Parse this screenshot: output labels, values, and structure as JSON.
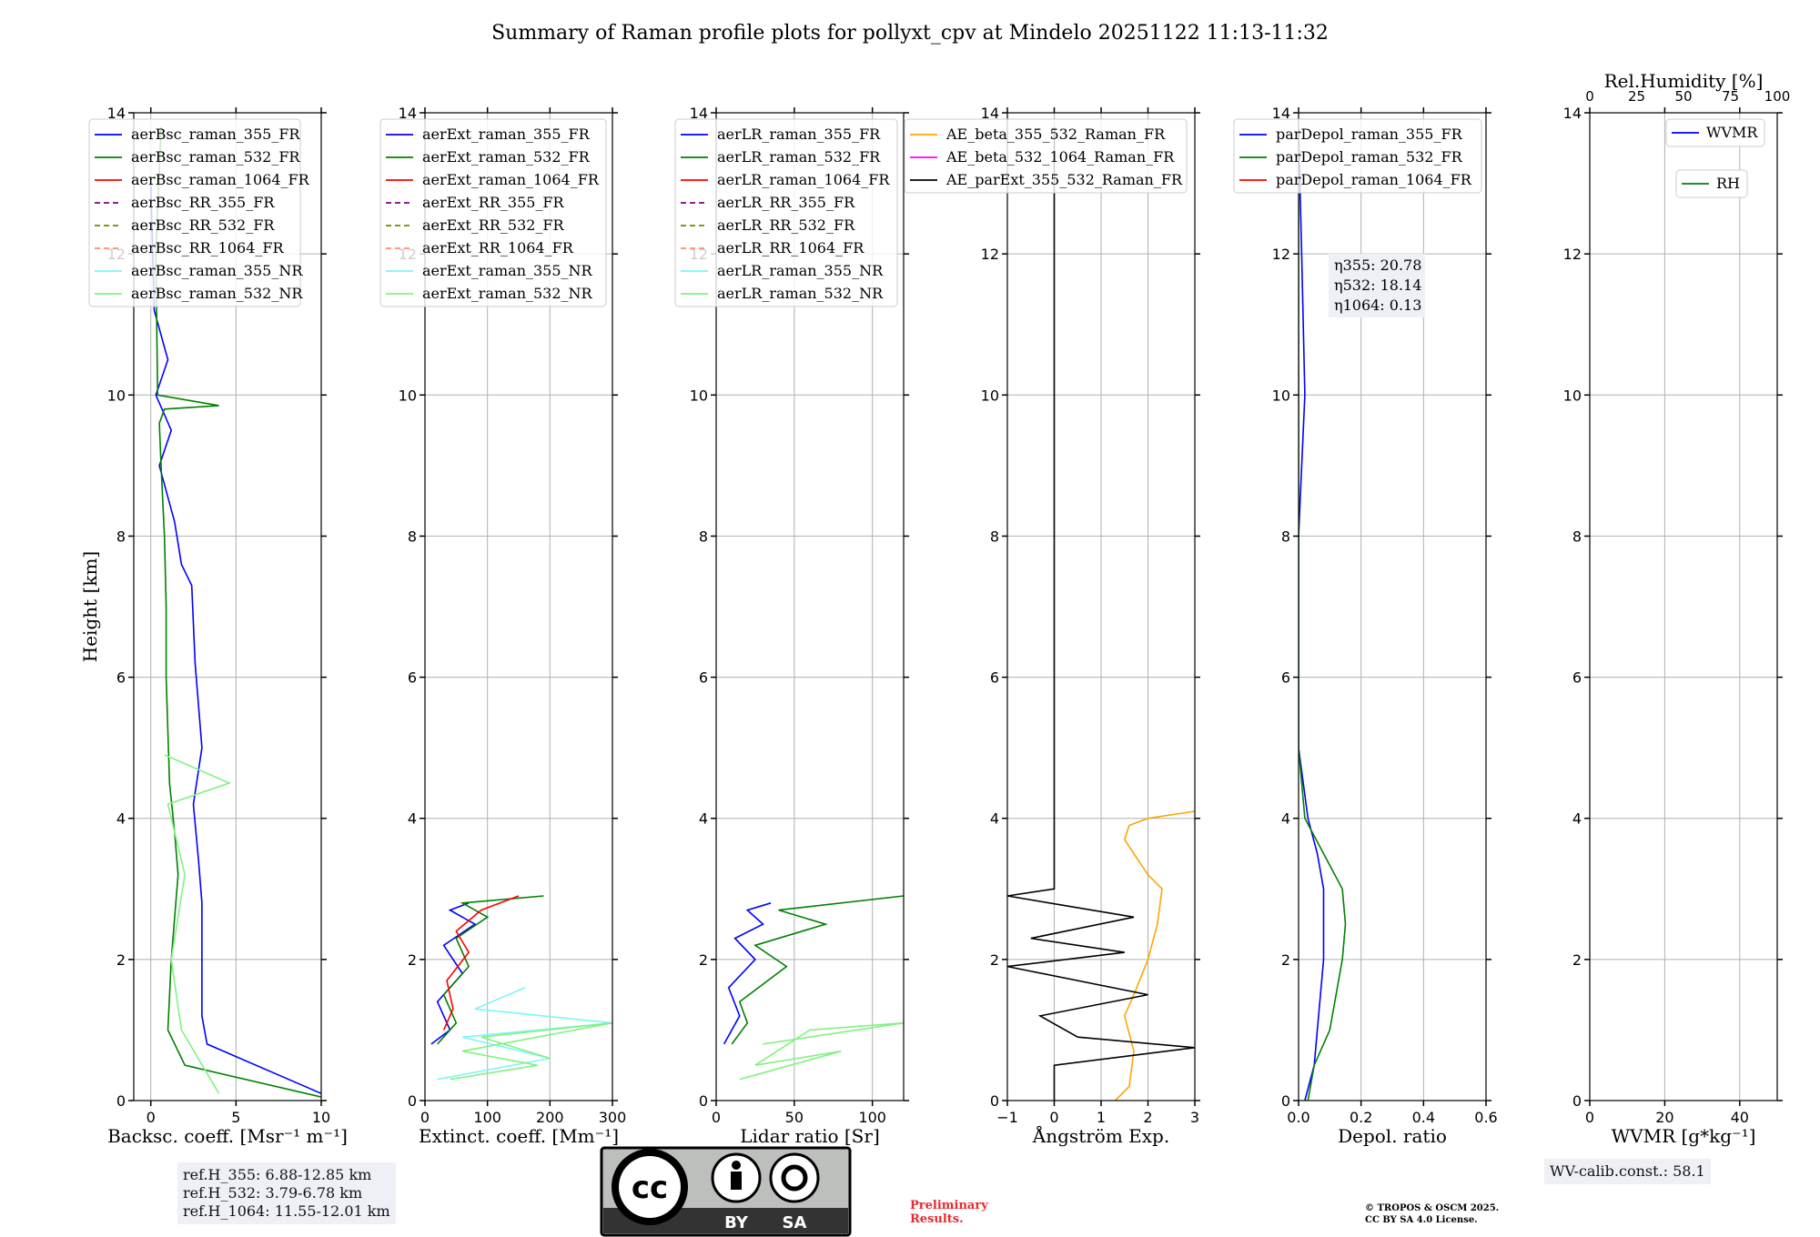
{
  "figure": {
    "title": "Summary of Raman profile plots for pollyxt_cpv at Mindelo 20251122 11:13-11:32"
  },
  "colors": {
    "c355": "#0000ff",
    "c532": "#008000",
    "c1064": "#ff0000",
    "rr355": "#800080",
    "rr532": "#808000",
    "rr1064": "#ff8c69",
    "nr355": "#7ff5f5",
    "nr532": "#82f282",
    "ae1": "#ffa500",
    "ae2": "#ff00ff",
    "ae3": "#000000"
  },
  "chart_data": [
    {
      "type": "line",
      "name": "backscatter",
      "xlabel": "Backsc. coeff. [Msr⁻¹ m⁻¹]",
      "ylabel": "Height [km]",
      "xlim": [
        -1,
        10
      ],
      "ylim": [
        0,
        14
      ],
      "xticks": [
        0,
        5,
        10
      ],
      "xtick_labels": [
        "0",
        "5",
        "10"
      ],
      "yticks": [
        0,
        2,
        4,
        6,
        8,
        10,
        12,
        14
      ],
      "grid": true,
      "legend_position": "upper-left",
      "legend": [
        "aerBsc_raman_355_FR",
        "aerBsc_raman_532_FR",
        "aerBsc_raman_1064_FR",
        "aerBsc_RR_355_FR",
        "aerBsc_RR_532_FR",
        "aerBsc_RR_1064_FR",
        "aerBsc_raman_355_NR",
        "aerBsc_raman_532_NR"
      ],
      "series": [
        {
          "name": "aerBsc_raman_355_FR",
          "x": [
            10,
            3.3,
            3.0,
            3.0,
            2.8,
            2.5,
            3.0,
            2.6,
            2.4,
            1.8,
            1.4,
            0.5,
            1.2,
            0.3,
            1.0,
            0.2,
            0.0
          ],
          "y": [
            0.1,
            0.8,
            1.2,
            2.8,
            3.4,
            4.2,
            5.0,
            6.2,
            7.3,
            7.6,
            8.2,
            9.0,
            9.5,
            10.0,
            10.5,
            11.2,
            13.0
          ]
        },
        {
          "name": "aerBsc_raman_532_FR",
          "x": [
            10,
            2.0,
            1.0,
            1.2,
            1.6,
            1.4,
            1.1,
            0.9,
            0.9,
            0.8,
            0.6,
            0.5,
            0.8,
            4.0,
            0.4,
            0.3,
            0.6
          ],
          "y": [
            0.05,
            0.5,
            1.0,
            2.0,
            3.2,
            3.8,
            4.5,
            6.0,
            7.0,
            8.0,
            9.0,
            9.6,
            9.8,
            9.85,
            10.0,
            12.0,
            13.8
          ]
        },
        {
          "name": "aerBsc_raman_532_NR",
          "x": [
            4,
            1.8,
            1.2,
            1.8,
            2.0,
            1.0,
            4.6,
            0.8
          ],
          "y": [
            0.1,
            1.0,
            2.0,
            2.9,
            3.2,
            4.2,
            4.5,
            4.9
          ]
        }
      ]
    },
    {
      "type": "line",
      "name": "extinction",
      "xlabel": "Extinct. coeff. [Mm⁻¹]",
      "xlim": [
        0,
        300
      ],
      "ylim": [
        0,
        14
      ],
      "xticks": [
        0,
        100,
        200,
        300
      ],
      "xtick_labels": [
        "0",
        "100",
        "200",
        "300"
      ],
      "yticks": [
        0,
        2,
        4,
        6,
        8,
        10,
        12,
        14
      ],
      "grid": true,
      "legend_position": "upper-left",
      "legend": [
        "aerExt_raman_355_FR",
        "aerExt_raman_532_FR",
        "aerExt_raman_1064_FR",
        "aerExt_RR_355_FR",
        "aerExt_RR_532_FR",
        "aerExt_RR_1064_FR",
        "aerExt_raman_355_NR",
        "aerExt_raman_532_NR"
      ],
      "series": [
        {
          "name": "aerExt_raman_355_FR",
          "x": [
            10,
            40,
            20,
            60,
            30,
            80,
            40,
            70
          ],
          "y": [
            0.8,
            1.0,
            1.4,
            1.8,
            2.2,
            2.5,
            2.7,
            2.8
          ]
        },
        {
          "name": "aerExt_raman_532_FR",
          "x": [
            20,
            50,
            30,
            70,
            50,
            100,
            60,
            190
          ],
          "y": [
            0.8,
            1.1,
            1.5,
            1.9,
            2.3,
            2.6,
            2.8,
            2.9
          ]
        },
        {
          "name": "aerExt_raman_1064_FR",
          "x": [
            30,
            45,
            35,
            70,
            50,
            90,
            150
          ],
          "y": [
            1.0,
            1.3,
            1.7,
            2.1,
            2.4,
            2.7,
            2.9
          ]
        },
        {
          "name": "aerExt_raman_355_NR",
          "x": [
            20,
            200,
            60,
            300,
            80,
            160
          ],
          "y": [
            0.3,
            0.6,
            0.9,
            1.1,
            1.3,
            1.6
          ]
        },
        {
          "name": "aerExt_raman_532_NR",
          "x": [
            40,
            180,
            60,
            300,
            90,
            200
          ],
          "y": [
            0.3,
            0.5,
            0.7,
            1.1,
            0.9,
            0.6
          ]
        }
      ]
    },
    {
      "type": "line",
      "name": "lidar-ratio",
      "xlabel": "Lidar ratio [Sr]",
      "xlim": [
        0,
        120
      ],
      "ylim": [
        0,
        14
      ],
      "xticks": [
        0,
        50,
        100
      ],
      "xtick_labels": [
        "0",
        "50",
        "100"
      ],
      "yticks": [
        0,
        2,
        4,
        6,
        8,
        10,
        12,
        14
      ],
      "grid": true,
      "legend_position": "upper-left",
      "legend": [
        "aerLR_raman_355_FR",
        "aerLR_raman_532_FR",
        "aerLR_raman_1064_FR",
        "aerLR_RR_355_FR",
        "aerLR_RR_532_FR",
        "aerLR_RR_1064_FR",
        "aerLR_raman_355_NR",
        "aerLR_raman_532_NR"
      ],
      "series": [
        {
          "name": "aerLR_raman_355_FR",
          "x": [
            5,
            15,
            8,
            25,
            12,
            30,
            20,
            35
          ],
          "y": [
            0.8,
            1.2,
            1.6,
            2.0,
            2.3,
            2.5,
            2.7,
            2.8
          ]
        },
        {
          "name": "aerLR_raman_532_FR",
          "x": [
            10,
            20,
            15,
            45,
            25,
            70,
            40,
            120
          ],
          "y": [
            0.8,
            1.1,
            1.4,
            1.9,
            2.2,
            2.5,
            2.7,
            2.9
          ]
        },
        {
          "name": "aerLR_raman_532_NR",
          "x": [
            15,
            80,
            25,
            60,
            120,
            30
          ],
          "y": [
            0.3,
            0.7,
            0.5,
            1.0,
            1.1,
            0.8
          ]
        }
      ]
    },
    {
      "type": "line",
      "name": "angstrom",
      "xlabel": "Ångström Exp.",
      "xlim": [
        -1,
        3
      ],
      "ylim": [
        0,
        14
      ],
      "xticks": [
        -1,
        0,
        1,
        2,
        3
      ],
      "xtick_labels": [
        "−1",
        "0",
        "1",
        "2",
        "3"
      ],
      "yticks": [
        0,
        2,
        4,
        6,
        8,
        10,
        12,
        14
      ],
      "grid": true,
      "legend_position": "upper-left",
      "legend": [
        "AE_beta_355_532_Raman_FR",
        "AE_beta_532_1064_Raman_FR",
        "AE_parExt_355_532_Raman_FR"
      ],
      "series": [
        {
          "name": "AE_beta_355_532_Raman_FR",
          "x": [
            1.3,
            1.6,
            1.7,
            1.5,
            1.7,
            2.0,
            2.2,
            2.3,
            2.0,
            1.7,
            1.5,
            1.6,
            2.0,
            3.0
          ],
          "y": [
            0.0,
            0.2,
            0.7,
            1.2,
            1.5,
            2.0,
            2.5,
            3.0,
            3.2,
            3.5,
            3.7,
            3.9,
            4.0,
            4.1
          ]
        },
        {
          "name": "AE_beta_532_1064_Raman_FR",
          "x": [],
          "y": []
        },
        {
          "name": "AE_parExt_355_532_Raman_FR",
          "x": [
            0,
            0,
            3,
            0.5,
            -0.3,
            2,
            -1,
            1.5,
            -0.5,
            1.7,
            -1,
            0,
            0
          ],
          "y": [
            0,
            0.5,
            0.75,
            0.9,
            1.2,
            1.5,
            1.9,
            2.1,
            2.3,
            2.6,
            2.9,
            3.0,
            13.8
          ]
        }
      ]
    },
    {
      "type": "line",
      "name": "depolarization",
      "xlabel": "Depol. ratio",
      "xlim": [
        0,
        0.6
      ],
      "ylim": [
        0,
        14
      ],
      "xticks": [
        0,
        0.2,
        0.4,
        0.6
      ],
      "xtick_labels": [
        "0.0",
        "0.2",
        "0.4",
        "0.6"
      ],
      "yticks": [
        0,
        2,
        4,
        6,
        8,
        10,
        12,
        14
      ],
      "grid": true,
      "legend_position": "upper-left",
      "legend": [
        "parDepol_raman_355_FR",
        "parDepol_raman_532_FR",
        "parDepol_raman_1064_FR"
      ],
      "annotation": [
        "η355: 20.78",
        "η532: 18.14",
        "η1064: 0.13"
      ],
      "series": [
        {
          "name": "parDepol_raman_355_FR",
          "x": [
            0.02,
            0.05,
            0.06,
            0.08,
            0.08,
            0.06,
            0.03,
            0.0,
            0.0,
            0.02,
            0.01,
            0.0
          ],
          "y": [
            0.0,
            0.5,
            1.0,
            2.0,
            3.0,
            3.5,
            4.0,
            5.0,
            8.0,
            10.0,
            12.0,
            13.8
          ]
        },
        {
          "name": "parDepol_raman_532_FR",
          "x": [
            0.03,
            0.05,
            0.1,
            0.12,
            0.14,
            0.15,
            0.14,
            0.08,
            0.02,
            0.0,
            0.0,
            0.0
          ],
          "y": [
            0.0,
            0.5,
            1.0,
            1.5,
            2.0,
            2.5,
            3.0,
            3.5,
            4.0,
            5.0,
            10.0,
            13.8
          ]
        }
      ]
    },
    {
      "type": "line",
      "name": "wvmr",
      "xlabel": "WVMR [g*kg⁻¹]",
      "top_xlabel": "Rel.Humidity [%]",
      "xlim": [
        0,
        50
      ],
      "ylim": [
        0,
        14
      ],
      "xticks": [
        0,
        20,
        40
      ],
      "xtick_labels": [
        "0",
        "20",
        "40"
      ],
      "top_xticks": [
        0,
        25,
        50,
        75,
        100
      ],
      "top_xtick_labels": [
        "0",
        "25",
        "50",
        "75",
        "100"
      ],
      "yticks": [
        0,
        2,
        4,
        6,
        8,
        10,
        12,
        14
      ],
      "grid": true,
      "legend": [
        "WVMR",
        "RH"
      ],
      "series": []
    }
  ],
  "footer": {
    "ref_heights": [
      "ref.H_355: 6.88-12.85 km",
      "ref.H_532: 3.79-6.78 km",
      "ref.H_1064: 11.55-12.01 km"
    ],
    "license_badge": {
      "by": "BY",
      "sa": "SA"
    },
    "preliminary": [
      "Preliminary",
      "Results."
    ],
    "copyright": [
      "© TROPOS & OSCM 2025.",
      "CC BY SA 4.0 License."
    ],
    "wv_calib": "WV-calib.const.: 58.1"
  }
}
